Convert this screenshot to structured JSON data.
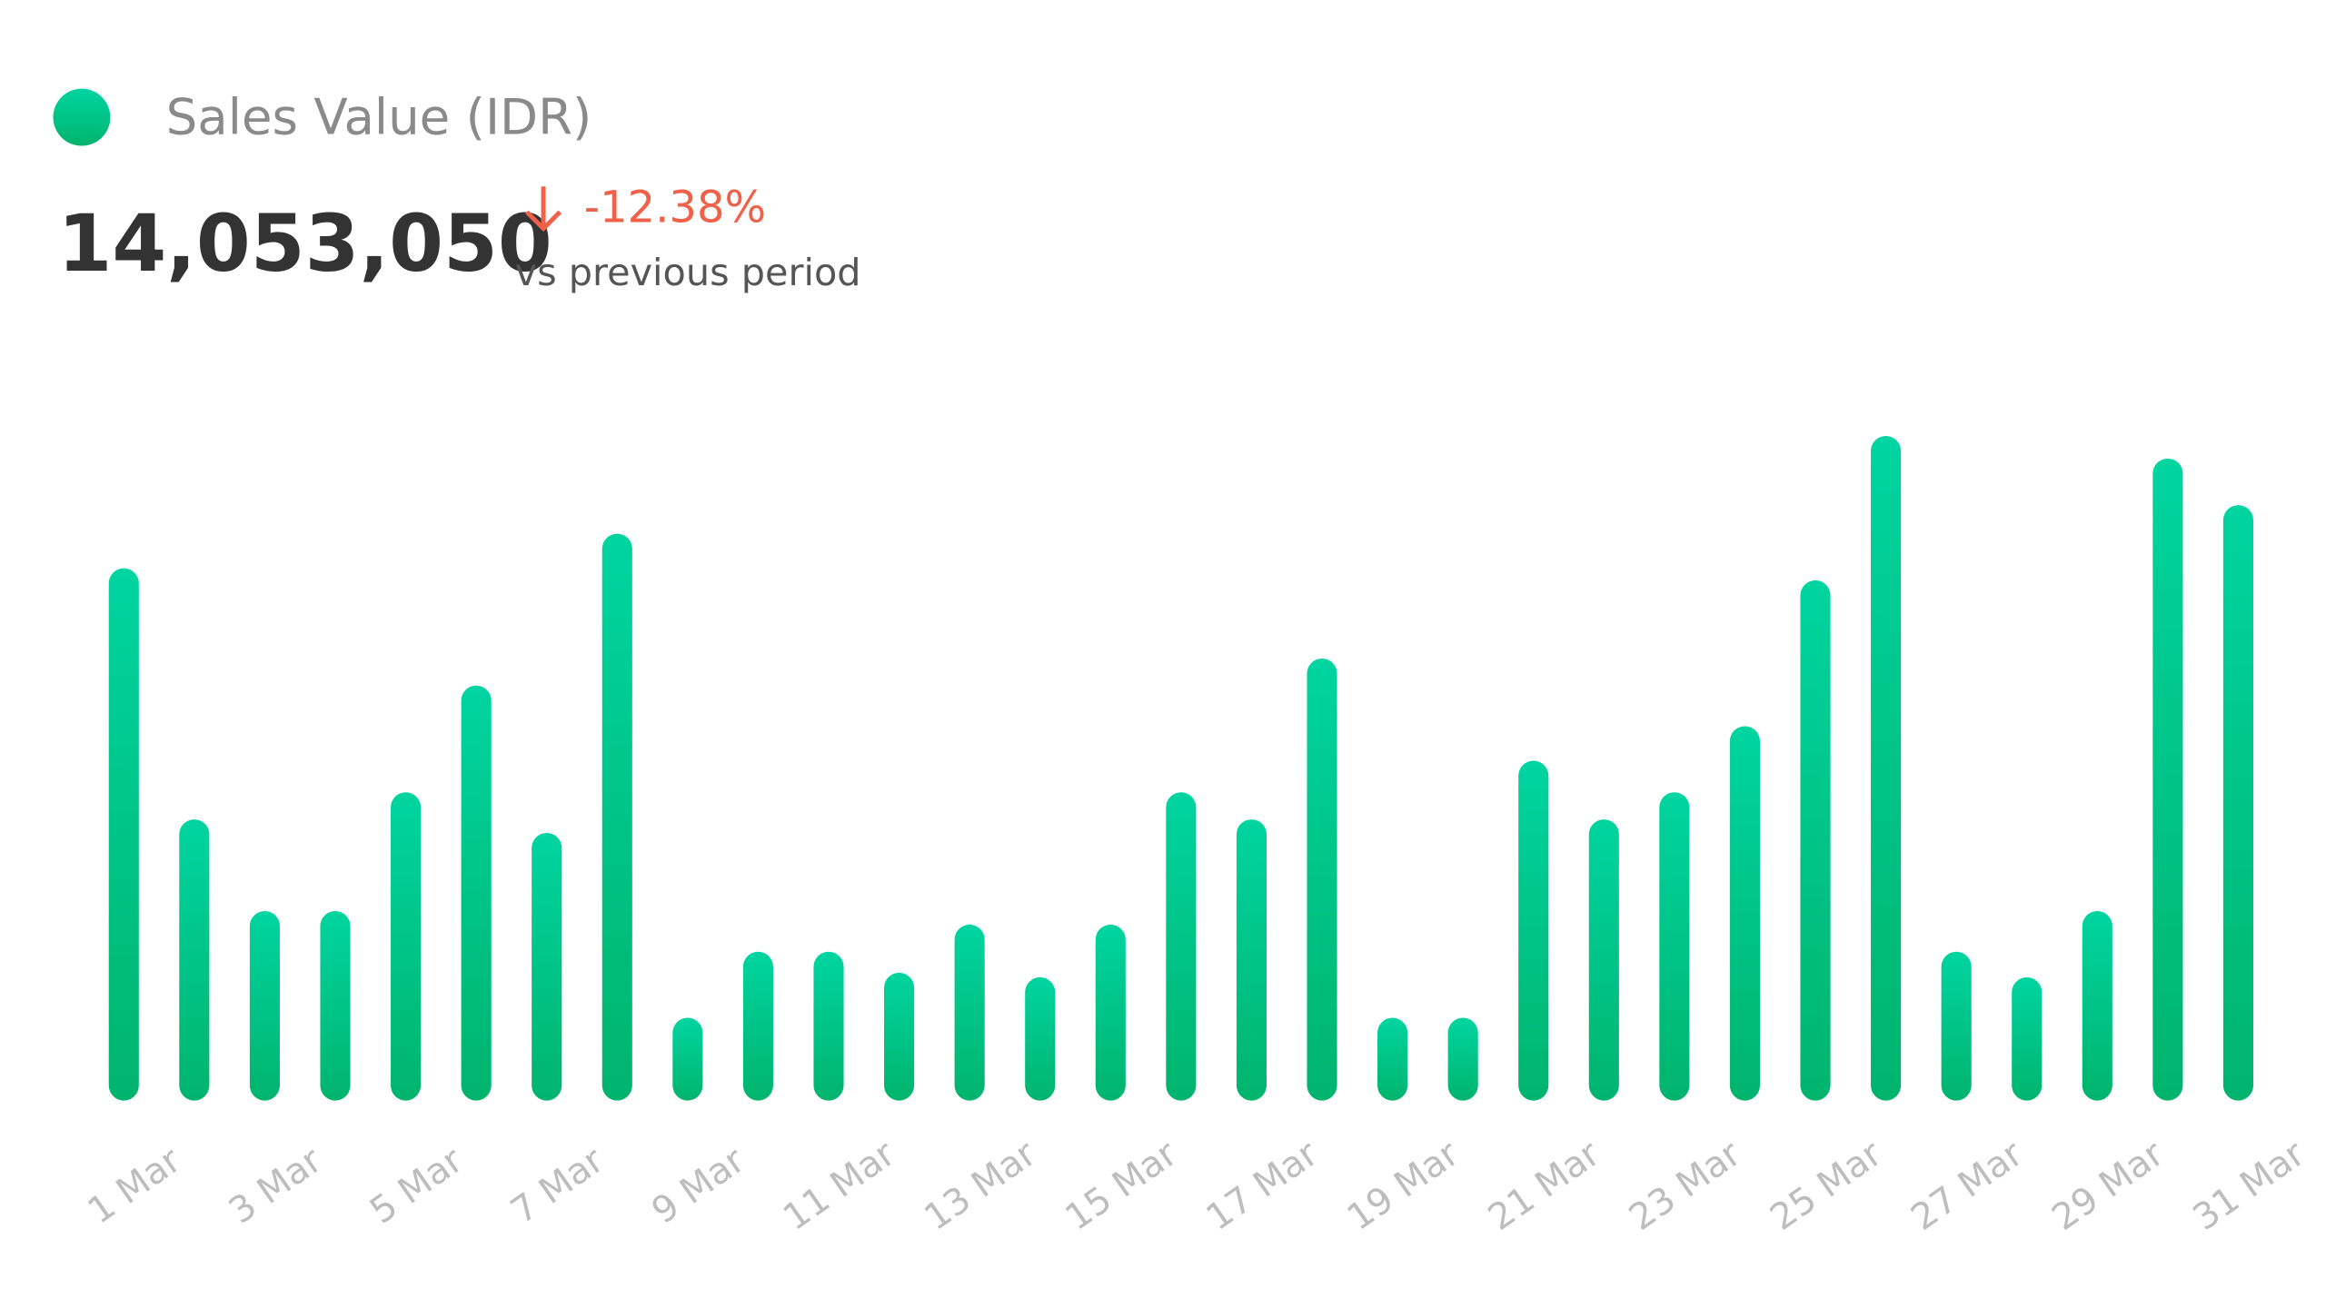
{
  "chart_data": {
    "type": "bar",
    "total": "14,053,050",
    "change": "-12.38%",
    "comparison": "vs previous period",
    "categories": [
      "1 Mar",
      null,
      "3 Mar",
      null,
      "5 Mar",
      null,
      "7 Mar",
      null,
      "9 Mar",
      null,
      "11 Mar",
      null,
      "13 Mar",
      null,
      "15 Mar",
      null,
      "17 Mar",
      null,
      "19 Mar",
      null,
      "21 Mar",
      null,
      "23 Mar",
      null,
      "25 Mar",
      null,
      "27 Mar",
      null,
      "29 Mar",
      null,
      "31 Mar"
    ],
    "series": [
      {
        "name": "Sales Value (IDR)",
        "color": [
          "#00d4a0",
          "#00b46e"
        ],
        "values": [
          354,
          187,
          126,
          126,
          205,
          276,
          178,
          377,
          55,
          99,
          99,
          85,
          117,
          82,
          117,
          205,
          187,
          294,
          55,
          55,
          226,
          187,
          205,
          249,
          346,
          442,
          99,
          82,
          126,
          427,
          396
        ]
      }
    ],
    "ylim": [
      0,
      442
    ],
    "grid": false
  }
}
